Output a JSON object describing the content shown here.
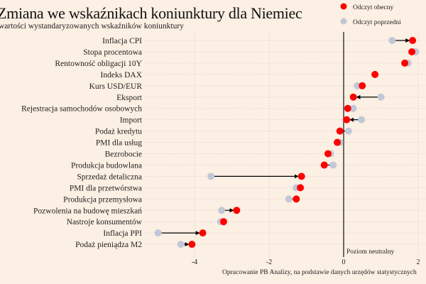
{
  "chart_data": {
    "type": "dot-arrow",
    "title": "Zmiana we wskaźnikach koniunktury dla Niemiec",
    "subtitle": "wartości wystandaryzowanych wskaźników koniunktury",
    "legend": {
      "placement": "top-right",
      "current": "Odczyt obecny",
      "previous": "Odczyt poprzedni"
    },
    "colors": {
      "current": "#ff0000",
      "previous": "#c0c8d8",
      "background": "#fcefe3"
    },
    "xlim": [
      -5.2,
      2.3
    ],
    "xticks": [
      -4,
      -2,
      0,
      2
    ],
    "grid": true,
    "reference_line": {
      "value": 0,
      "label": "Poziom neutralny"
    },
    "source": "Opracowanie PB Analizy, na podstawie danych urzędów statystycznych",
    "categories": [
      "Inflacja CPI",
      "Stopa procentowa",
      "Rentowność obligacji 10Y",
      "Indeks DAX",
      "Kurs USD/EUR",
      "Eksport",
      "Rejestracja samochodów osobowych",
      "Import",
      "Podaż kredytu",
      "PMI dla usług",
      "Bezrobocie",
      "Produkcja budowlana",
      "Sprzedaż detaliczna",
      "PMI dla przetwórstwa",
      "Produkcja przemysłowa",
      "Pozwolenia na budowę mieszkań",
      "Nastroje konsumentów",
      "Inflacja PPI",
      "Podaż pieniądza M2"
    ],
    "series": [
      {
        "name": "Odczyt obecny",
        "values": [
          1.85,
          1.83,
          1.64,
          0.84,
          0.5,
          0.26,
          0.11,
          0.08,
          -0.1,
          -0.17,
          -0.42,
          -0.52,
          -1.13,
          -1.16,
          -1.27,
          -2.87,
          -3.22,
          -3.78,
          -4.07
        ]
      },
      {
        "name": "Odczyt poprzedni",
        "values": [
          1.3,
          1.93,
          1.73,
          0.84,
          0.37,
          1.0,
          0.26,
          0.48,
          0.13,
          -0.1,
          -0.35,
          -0.28,
          -3.56,
          -1.27,
          -1.47,
          -3.27,
          -3.3,
          -4.98,
          -4.37
        ]
      }
    ]
  }
}
